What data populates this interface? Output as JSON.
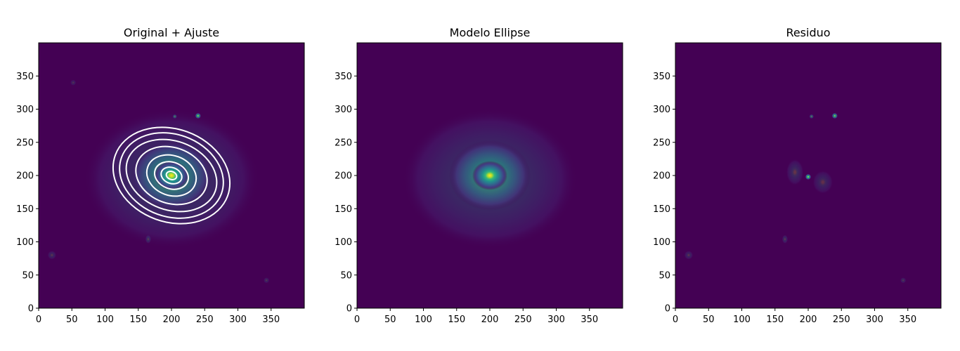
{
  "chart_data": [
    {
      "type": "heatmap",
      "title": "Original + Ajuste",
      "xlabel": "",
      "ylabel": "",
      "xlim": [
        0,
        400
      ],
      "ylim": [
        0,
        400
      ],
      "xticks": [
        0,
        50,
        100,
        150,
        200,
        250,
        300,
        350
      ],
      "yticks": [
        0,
        50,
        100,
        150,
        200,
        250,
        300,
        350
      ],
      "colormap": "viridis",
      "background_color": "#440154",
      "sources": [
        {
          "x": 200,
          "y": 200,
          "sx": 12,
          "sy": 10,
          "amp": 1.0
        },
        {
          "x": 200,
          "y": 200,
          "sx": 28,
          "sy": 24,
          "amp": 0.55
        },
        {
          "x": 200,
          "y": 195,
          "sx": 60,
          "sy": 48,
          "amp": 0.18
        },
        {
          "x": 240,
          "y": 290,
          "sx": 2,
          "sy": 2,
          "amp": 0.8
        },
        {
          "x": 205,
          "y": 289,
          "sx": 1.5,
          "sy": 1.5,
          "amp": 0.45
        },
        {
          "x": 165,
          "y": 104,
          "sx": 2,
          "sy": 3,
          "amp": 0.15
        },
        {
          "x": 20,
          "y": 80,
          "sx": 3,
          "sy": 3,
          "amp": 0.12
        },
        {
          "x": 343,
          "y": 42,
          "sx": 2,
          "sy": 2,
          "amp": 0.12
        },
        {
          "x": 52,
          "y": 340,
          "sx": 2,
          "sy": 2,
          "amp": 0.1
        }
      ],
      "isophotes": {
        "color": "#ffffff",
        "center": [
          200,
          200
        ],
        "angle_deg": -20,
        "semi_axes": [
          [
            8,
            6
          ],
          [
            16,
            12
          ],
          [
            26,
            20
          ],
          [
            38,
            30
          ],
          [
            55,
            42
          ],
          [
            70,
            52
          ],
          [
            80,
            62
          ],
          [
            90,
            70
          ]
        ]
      }
    },
    {
      "type": "heatmap",
      "title": "Modelo Ellipse",
      "xlabel": "",
      "ylabel": "",
      "xlim": [
        0,
        400
      ],
      "ylim": [
        0,
        400
      ],
      "xticks": [
        0,
        50,
        100,
        150,
        200,
        250,
        300,
        350
      ],
      "yticks": [
        0,
        50,
        100,
        150,
        200,
        250,
        300,
        350
      ],
      "colormap": "viridis",
      "background_color": "#440154",
      "sources": [
        {
          "x": 200,
          "y": 200,
          "sx": 12,
          "sy": 10,
          "amp": 1.0
        },
        {
          "x": 200,
          "y": 200,
          "sx": 28,
          "sy": 24,
          "amp": 0.55
        },
        {
          "x": 200,
          "y": 195,
          "sx": 60,
          "sy": 48,
          "amp": 0.18
        }
      ]
    },
    {
      "type": "heatmap",
      "title": "Residuo",
      "xlabel": "",
      "ylabel": "",
      "xlim": [
        0,
        400
      ],
      "ylim": [
        0,
        400
      ],
      "xticks": [
        0,
        50,
        100,
        150,
        200,
        250,
        300,
        350
      ],
      "yticks": [
        0,
        50,
        100,
        150,
        200,
        250,
        300,
        350
      ],
      "colormap": "viridis",
      "background_color": "#440154",
      "sources": [
        {
          "x": 200,
          "y": 198,
          "sx": 2,
          "sy": 2,
          "amp": 1.0
        },
        {
          "x": 240,
          "y": 290,
          "sx": 2,
          "sy": 2,
          "amp": 0.8
        },
        {
          "x": 205,
          "y": 289,
          "sx": 1.5,
          "sy": 1.5,
          "amp": 0.45
        },
        {
          "x": 180,
          "y": 205,
          "sx": 6,
          "sy": 9,
          "amp": 0.12
        },
        {
          "x": 222,
          "y": 190,
          "sx": 7,
          "sy": 8,
          "amp": 0.1
        },
        {
          "x": 165,
          "y": 104,
          "sx": 2,
          "sy": 3,
          "amp": 0.15
        },
        {
          "x": 20,
          "y": 80,
          "sx": 3,
          "sy": 3,
          "amp": 0.12
        },
        {
          "x": 343,
          "y": 42,
          "sx": 2,
          "sy": 2,
          "amp": 0.12
        }
      ]
    }
  ]
}
